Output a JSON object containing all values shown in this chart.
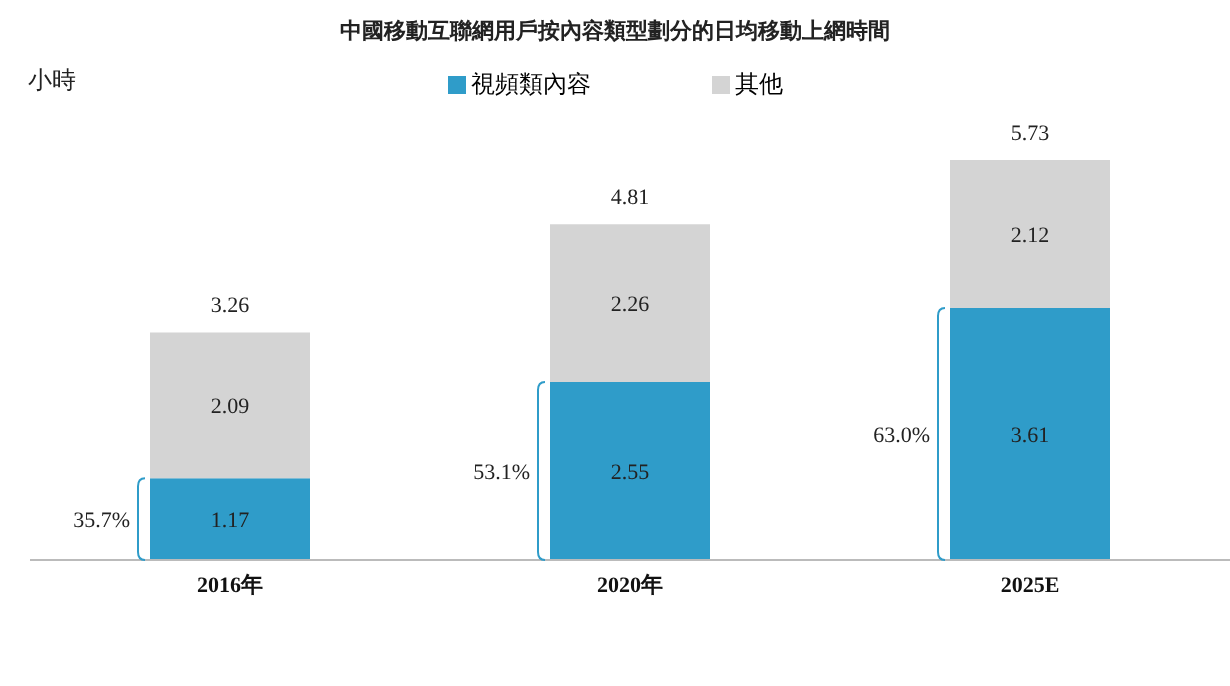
{
  "chart_data": {
    "type": "bar",
    "title": "中國移動互聯網用戶按內容類型劃分的日均移動上網時間",
    "ylabel": "小時",
    "categories": [
      "2016年",
      "2020年",
      "2025E"
    ],
    "stacked": true,
    "series": [
      {
        "name": "視頻類內容",
        "color": "#2f9cc9",
        "values": [
          1.17,
          2.55,
          3.61
        ]
      },
      {
        "name": "其他",
        "color": "#d4d4d4",
        "values": [
          2.09,
          2.26,
          2.12
        ]
      }
    ],
    "totals": [
      "3.26",
      "4.81",
      "5.73"
    ],
    "data_labels": true,
    "legend": "top",
    "grid": false,
    "annotations": [
      "35.7%",
      "53.1%",
      "63.0%"
    ]
  }
}
